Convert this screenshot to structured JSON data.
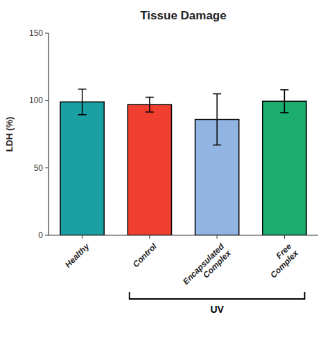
{
  "chart_data": {
    "type": "bar",
    "title": "Tissue Damage",
    "ylabel": "LDH (%)",
    "categories": [
      "Healthy",
      "Control",
      "Encapsulated\nComplex",
      "Free\nComplex"
    ],
    "values": [
      99.0,
      97.0,
      86.0,
      99.5
    ],
    "errors": [
      9.5,
      5.5,
      19.0,
      8.5
    ],
    "colors": [
      "#1a9fa3",
      "#f03e2f",
      "#92b4e3",
      "#1aad6e"
    ],
    "ylim": [
      0,
      150
    ],
    "yticks": [
      0,
      50,
      100,
      150
    ],
    "grid": false,
    "annotations": [
      {
        "text": "UV",
        "from": "Control",
        "to": "Free\nComplex"
      }
    ]
  }
}
